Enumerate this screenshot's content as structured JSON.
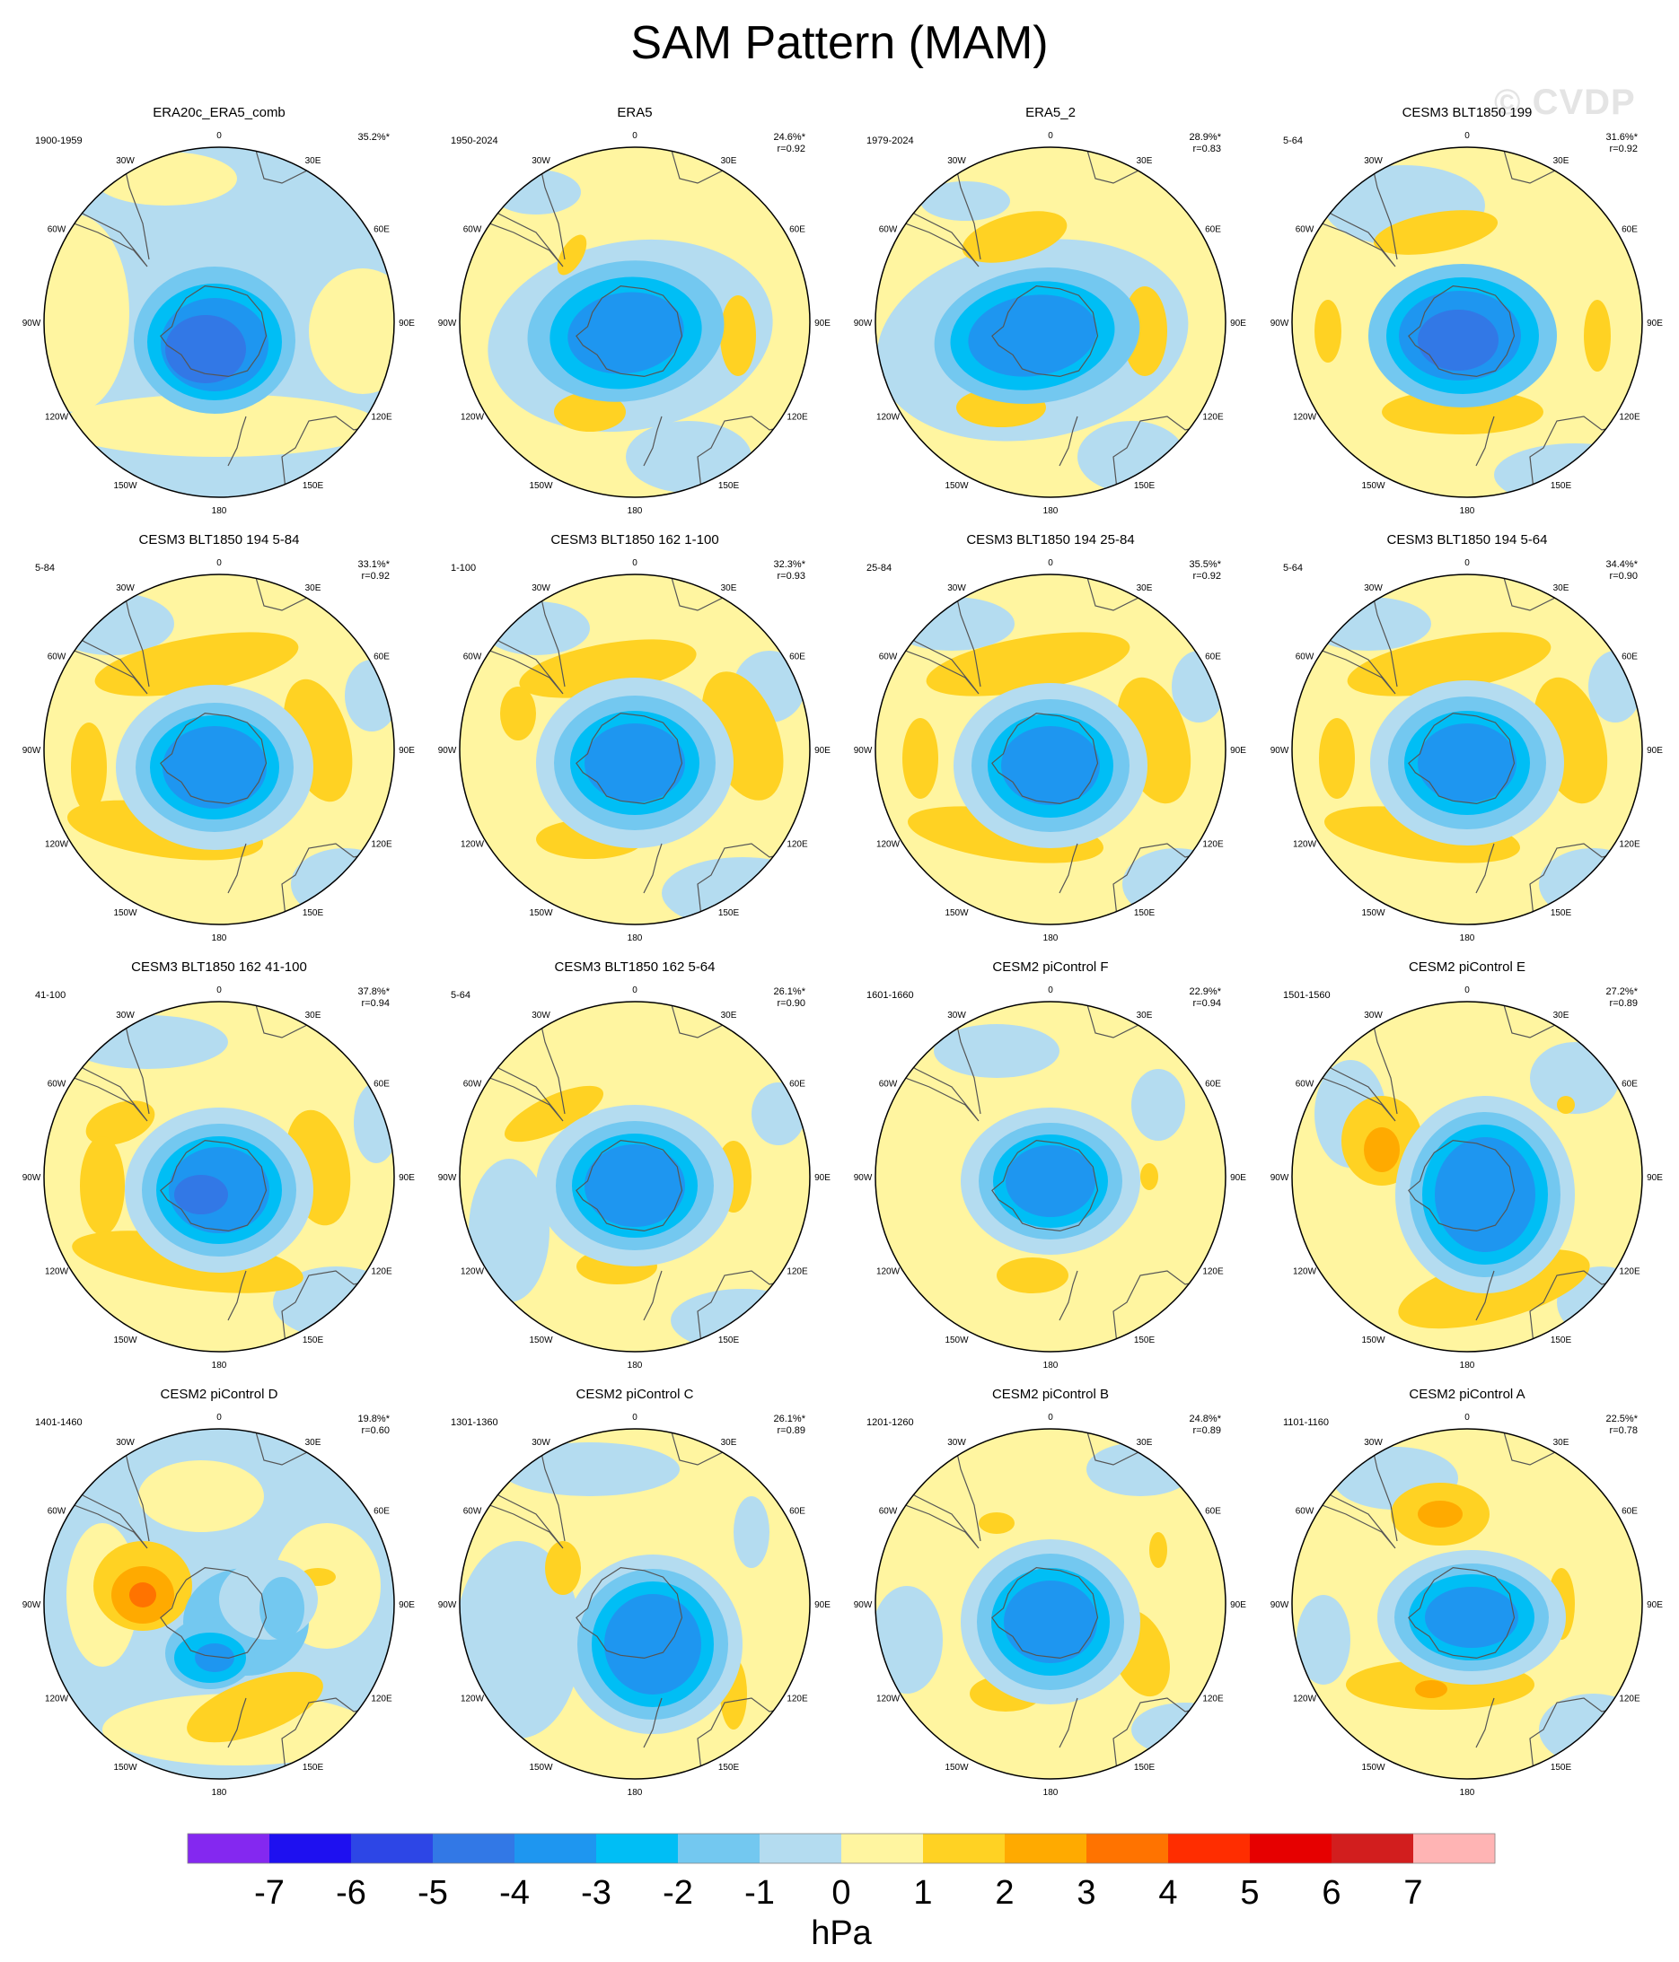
{
  "title": "SAM Pattern (MAM)",
  "watermark": "© CVDP",
  "colorbar": {
    "units": "hPa",
    "labels": [
      "-7",
      "-6",
      "-5",
      "-4",
      "-3",
      "-2",
      "-1",
      "0",
      "1",
      "2",
      "3",
      "4",
      "5",
      "6",
      "7"
    ],
    "colors": [
      "#8428f0",
      "#1e10f0",
      "#2d46e6",
      "#3278e6",
      "#1e96f0",
      "#00bef5",
      "#73c8f0",
      "#b4dcf0",
      "#fff5a0",
      "#ffd223",
      "#ffaa00",
      "#ff7300",
      "#ff2d00",
      "#e60000",
      "#d21e1e",
      "#ffb4b4"
    ]
  },
  "lon_labels": [
    "0",
    "30E",
    "60E",
    "90E",
    "120E",
    "150E",
    "180",
    "150W",
    "120W",
    "90W",
    "60W",
    "30W"
  ],
  "chart_data": {
    "type": "heatmap",
    "description_units": "hPa",
    "panels": [
      {
        "title": "ERA20c_ERA5_comb",
        "period": "1900-1959",
        "pct": "35.2%*",
        "r": ""
      },
      {
        "title": "ERA5",
        "period": "1950-2024",
        "pct": "24.6%*",
        "r": "r=0.92"
      },
      {
        "title": "ERA5_2",
        "period": "1979-2024",
        "pct": "28.9%*",
        "r": "r=0.83"
      },
      {
        "title": "CESM3 BLT1850 199",
        "period": "5-64",
        "pct": "31.6%*",
        "r": "r=0.92"
      },
      {
        "title": "CESM3 BLT1850 194 5-84",
        "period": "5-84",
        "pct": "33.1%*",
        "r": "r=0.92"
      },
      {
        "title": "CESM3 BLT1850 162 1-100",
        "period": "1-100",
        "pct": "32.3%*",
        "r": "r=0.93"
      },
      {
        "title": "CESM3 BLT1850 194 25-84",
        "period": "25-84",
        "pct": "35.5%*",
        "r": "r=0.92"
      },
      {
        "title": "CESM3 BLT1850 194 5-64",
        "period": "5-64",
        "pct": "34.4%*",
        "r": "r=0.90"
      },
      {
        "title": "CESM3 BLT1850 162 41-100",
        "period": "41-100",
        "pct": "37.8%*",
        "r": "r=0.94"
      },
      {
        "title": "CESM3 BLT1850 162 5-64",
        "period": "5-64",
        "pct": "26.1%*",
        "r": "r=0.90"
      },
      {
        "title": "CESM2 piControl F",
        "period": "1601-1660",
        "pct": "22.9%*",
        "r": "r=0.94"
      },
      {
        "title": "CESM2 piControl E",
        "period": "1501-1560",
        "pct": "27.2%*",
        "r": "r=0.89"
      },
      {
        "title": "CESM2 piControl D",
        "period": "1401-1460",
        "pct": "19.8%*",
        "r": "r=0.60"
      },
      {
        "title": "CESM2 piControl C",
        "period": "1301-1360",
        "pct": "26.1%*",
        "r": "r=0.89"
      },
      {
        "title": "CESM2 piControl B",
        "period": "1201-1260",
        "pct": "24.8%*",
        "r": "r=0.89"
      },
      {
        "title": "CESM2 piControl A",
        "period": "1101-1160",
        "pct": "22.5%*",
        "r": "r=0.78"
      }
    ]
  }
}
